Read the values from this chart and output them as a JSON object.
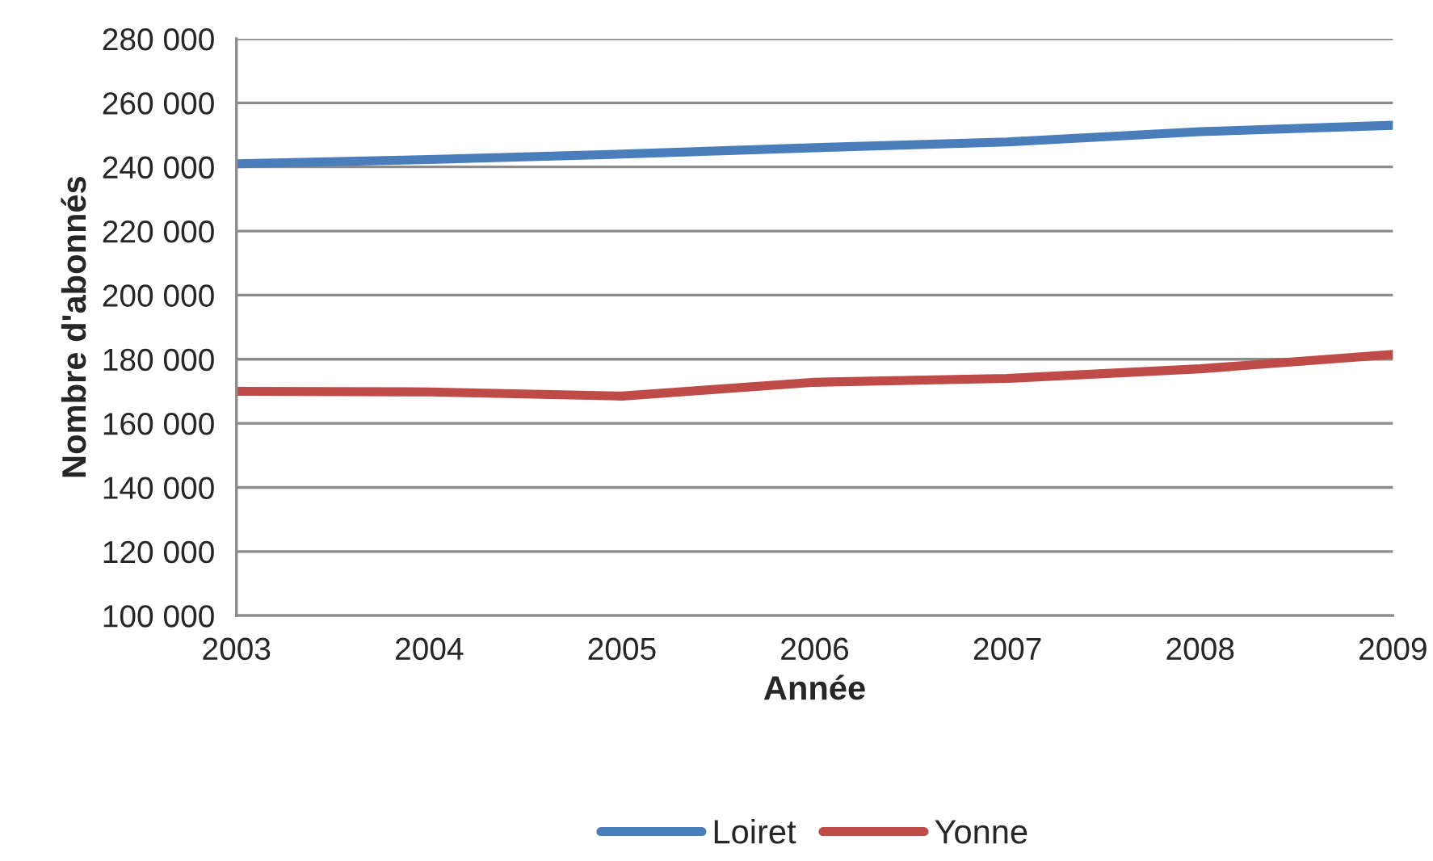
{
  "chart_data": {
    "type": "line",
    "xlabel": "Année",
    "ylabel": "Nombre d'abonnés",
    "x": [
      2003,
      2004,
      2005,
      2006,
      2007,
      2008,
      2009
    ],
    "series": [
      {
        "name": "Loiret",
        "color": "#4a7ebb",
        "values": [
          241000,
          242300,
          244000,
          246000,
          247800,
          251000,
          253000
        ]
      },
      {
        "name": "Yonne",
        "color": "#be4b48",
        "values": [
          170000,
          169800,
          168500,
          172800,
          174000,
          177000,
          181500
        ]
      }
    ],
    "xlim": [
      2003,
      2009
    ],
    "xticks": [
      2003,
      2004,
      2005,
      2006,
      2007,
      2008,
      2009
    ],
    "ylim": [
      100000,
      280000
    ],
    "yticks": [
      {
        "value": 100000,
        "label": "100 000"
      },
      {
        "value": 120000,
        "label": "120 000"
      },
      {
        "value": 140000,
        "label": "140 000"
      },
      {
        "value": 160000,
        "label": "160 000"
      },
      {
        "value": 180000,
        "label": "180 000"
      },
      {
        "value": 200000,
        "label": "200 000"
      },
      {
        "value": 220000,
        "label": "220 000"
      },
      {
        "value": 240000,
        "label": "240 000"
      },
      {
        "value": 260000,
        "label": "260 000"
      },
      {
        "value": 280000,
        "label": "280 000"
      }
    ],
    "grid": "y",
    "legend": "bottom",
    "marker": "none",
    "line_style": "solid"
  }
}
